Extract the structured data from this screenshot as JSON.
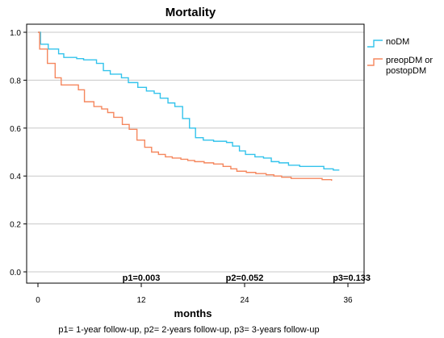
{
  "chart_data": {
    "type": "line",
    "title": "Mortality",
    "xlabel": "months",
    "ylabel": "",
    "xlim": [
      0,
      36
    ],
    "ylim": [
      0.0,
      1.0
    ],
    "x_ticks": [
      0,
      12,
      24,
      36
    ],
    "y_ticks": [
      0.0,
      0.2,
      0.4,
      0.6,
      0.8,
      1.0
    ],
    "y_tick_labels": [
      "0.0",
      "0.2",
      "0.4",
      "0.6",
      "0.8",
      "1.0"
    ],
    "grid": "horizontal",
    "legend_position": "top-right",
    "series": [
      {
        "name": "noDM",
        "color": "#33c3ec",
        "step": true,
        "x": [
          0,
          0.3,
          1.2,
          2.4,
          3.0,
          4.5,
          5.3,
          6.8,
          7.6,
          8.4,
          9.7,
          10.5,
          11.6,
          12.6,
          13.5,
          14.2,
          15.1,
          15.9,
          16.8,
          17.6,
          18.3,
          19.2,
          20.4,
          21.9,
          22.6,
          23.4,
          24.1,
          25.2,
          26.2,
          27.1,
          28.0,
          29.1,
          30.4,
          31.4,
          32.3,
          33.2,
          34.3,
          35.0
        ],
        "y": [
          1.0,
          0.95,
          0.93,
          0.91,
          0.895,
          0.89,
          0.885,
          0.87,
          0.84,
          0.825,
          0.81,
          0.79,
          0.77,
          0.755,
          0.745,
          0.725,
          0.705,
          0.69,
          0.64,
          0.6,
          0.56,
          0.55,
          0.545,
          0.54,
          0.525,
          0.505,
          0.49,
          0.48,
          0.475,
          0.46,
          0.455,
          0.445,
          0.44,
          0.44,
          0.44,
          0.43,
          0.425,
          0.425
        ]
      },
      {
        "name": "preopDM or postopDM",
        "color": "#f5875e",
        "step": true,
        "x": [
          0,
          0.2,
          1.1,
          2.0,
          2.7,
          4.7,
          5.4,
          6.5,
          7.4,
          8.1,
          8.8,
          9.8,
          10.6,
          11.5,
          12.4,
          13.2,
          14.0,
          14.8,
          15.6,
          16.6,
          17.4,
          18.2,
          19.3,
          20.4,
          21.5,
          22.4,
          23.1,
          24.2,
          25.3,
          26.5,
          27.4,
          28.3,
          29.4,
          30.3,
          31.2,
          32.1,
          33.0,
          34.1
        ],
        "y": [
          1.0,
          0.93,
          0.87,
          0.81,
          0.78,
          0.76,
          0.71,
          0.69,
          0.68,
          0.665,
          0.645,
          0.615,
          0.595,
          0.55,
          0.52,
          0.5,
          0.49,
          0.48,
          0.475,
          0.47,
          0.465,
          0.46,
          0.455,
          0.45,
          0.44,
          0.43,
          0.42,
          0.415,
          0.41,
          0.405,
          0.4,
          0.395,
          0.39,
          0.39,
          0.39,
          0.39,
          0.385,
          0.38
        ]
      }
    ],
    "legend_labels": [
      {
        "text": "noDM",
        "color": "#33c3ec"
      },
      {
        "text": "preopDM or",
        "color": "#f5875e"
      },
      {
        "text": "postopDM",
        "color": "#f5875e"
      }
    ],
    "annotations": [
      {
        "text": "p1=0.003",
        "x": 12
      },
      {
        "text": "p2=0.052",
        "x": 24
      },
      {
        "text": "p3=0.133",
        "x": 36
      }
    ],
    "footnote": "p1= 1-year follow-up, p2= 2-years follow-up, p3= 3-years follow-up"
  }
}
